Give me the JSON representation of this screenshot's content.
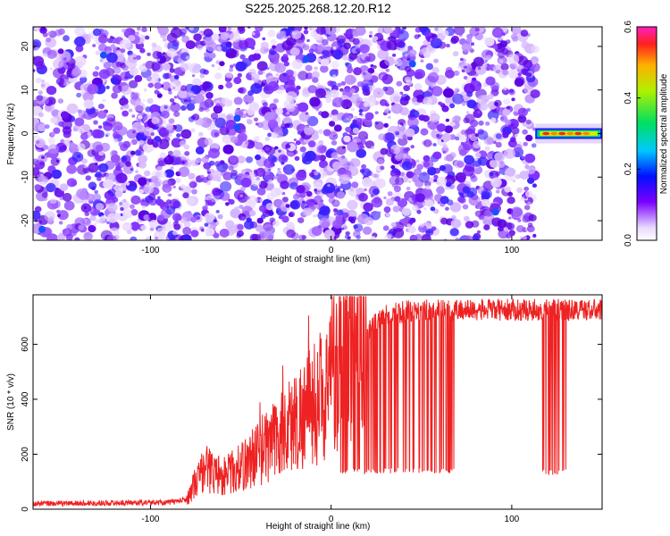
{
  "title": "S225.2025.268.12.20.R12",
  "chart_data": [
    {
      "type": "heatmap",
      "xlabel": "Height of straight line (km)",
      "ylabel": "Frequency (Hz)",
      "xlim": [
        -165,
        150
      ],
      "ylim": [
        -24.5,
        24.5
      ],
      "xticks": [
        -100,
        0,
        100
      ],
      "yticks": [
        -20,
        -10,
        0,
        10,
        20
      ],
      "data_extent_x": [
        -165,
        113
      ],
      "carrier": {
        "x_range": [
          113,
          150
        ],
        "frequency": 0,
        "amplitude_peak": 0.55
      },
      "colorbar": {
        "label": "Normalized spectral amplitude",
        "range": [
          0,
          0.6
        ],
        "ticks": [
          "0.0",
          "0.2",
          "0.4",
          "0.6"
        ]
      }
    },
    {
      "type": "line",
      "xlabel": "Height of straight line (km)",
      "ylabel": "SNR (10 * v/v)",
      "xlim": [
        -165,
        150
      ],
      "ylim": [
        0,
        780
      ],
      "xticks": [
        -100,
        0,
        100
      ],
      "yticks": [
        0,
        200,
        400,
        600
      ],
      "color": "#ee2222",
      "profile": [
        {
          "x": -165,
          "y": 20
        },
        {
          "x": -90,
          "y": 25
        },
        {
          "x": -80,
          "y": 35
        },
        {
          "x": -75,
          "y": 100
        },
        {
          "x": -70,
          "y": 150
        },
        {
          "x": -60,
          "y": 120
        },
        {
          "x": -50,
          "y": 150
        },
        {
          "x": -40,
          "y": 210
        },
        {
          "x": -30,
          "y": 260
        },
        {
          "x": -20,
          "y": 320
        },
        {
          "x": -10,
          "y": 380
        },
        {
          "x": 0,
          "y": 450
        },
        {
          "x": 10,
          "y": 570
        },
        {
          "x": 20,
          "y": 650
        },
        {
          "x": 30,
          "y": 710
        },
        {
          "x": 50,
          "y": 725
        },
        {
          "x": 150,
          "y": 725
        }
      ],
      "dropouts": [
        {
          "x_range": [
            5,
            68
          ],
          "floor": 130
        },
        {
          "x_range": [
            116,
            130
          ],
          "floor": 125
        }
      ]
    }
  ]
}
